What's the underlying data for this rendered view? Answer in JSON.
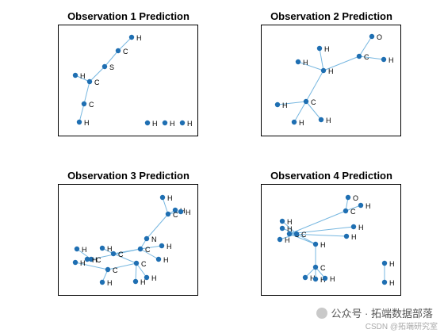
{
  "figure": {
    "panels": [
      {
        "title": "Observation 1 Prediction",
        "atoms": [
          {
            "label": "H"
          },
          {
            "label": "C"
          },
          {
            "label": "S"
          },
          {
            "label": "C"
          },
          {
            "label": "H"
          },
          {
            "label": "C"
          },
          {
            "label": "H"
          },
          {
            "label": "H"
          },
          {
            "label": "H"
          },
          {
            "label": "H"
          }
        ],
        "bonds": [
          [
            0,
            1
          ],
          [
            1,
            2
          ],
          [
            2,
            3
          ],
          [
            3,
            4
          ],
          [
            3,
            5
          ],
          [
            5,
            6
          ]
        ]
      },
      {
        "title": "Observation 2 Prediction",
        "atoms": [
          {
            "label": "O"
          },
          {
            "label": "C"
          },
          {
            "label": "H"
          },
          {
            "label": "H"
          },
          {
            "label": "H"
          },
          {
            "label": "H"
          },
          {
            "label": "C"
          },
          {
            "label": "H"
          },
          {
            "label": "H"
          },
          {
            "label": "H"
          }
        ],
        "bonds": [
          [
            0,
            1
          ],
          [
            1,
            2
          ],
          [
            1,
            3
          ],
          [
            3,
            4
          ],
          [
            3,
            5
          ],
          [
            3,
            6
          ],
          [
            6,
            7
          ],
          [
            6,
            8
          ],
          [
            6,
            9
          ]
        ]
      },
      {
        "title": "Observation 3 Prediction",
        "atoms": [
          {
            "label": "H"
          },
          {
            "label": "H"
          },
          {
            "label": "C"
          },
          {
            "label": "H"
          },
          {
            "label": "N"
          },
          {
            "label": "H"
          },
          {
            "label": "C"
          },
          {
            "label": "H"
          },
          {
            "label": "H"
          },
          {
            "label": "C"
          },
          {
            "label": "C"
          },
          {
            "label": "H"
          },
          {
            "label": "H"
          },
          {
            "label": "C"
          },
          {
            "label": "H"
          },
          {
            "label": "C"
          },
          {
            "label": "H"
          },
          {
            "label": "H"
          },
          {
            "label": "H"
          }
        ],
        "bonds": [
          [
            0,
            2
          ],
          [
            1,
            2
          ],
          [
            2,
            3
          ],
          [
            2,
            4
          ],
          [
            4,
            6
          ],
          [
            6,
            5
          ],
          [
            6,
            7
          ],
          [
            6,
            9
          ],
          [
            6,
            15
          ],
          [
            9,
            8
          ],
          [
            9,
            10
          ],
          [
            10,
            11
          ],
          [
            10,
            12
          ],
          [
            10,
            13
          ],
          [
            13,
            14
          ],
          [
            13,
            16
          ],
          [
            15,
            17
          ],
          [
            15,
            18
          ]
        ]
      },
      {
        "title": "Observation 4 Prediction",
        "atoms": [
          {
            "label": "O"
          },
          {
            "label": "H"
          },
          {
            "label": "C"
          },
          {
            "label": "H"
          },
          {
            "label": "H"
          },
          {
            "label": "C"
          },
          {
            "label": "H"
          },
          {
            "label": "C"
          },
          {
            "label": "H"
          },
          {
            "label": "H"
          },
          {
            "label": "H"
          },
          {
            "label": "C"
          },
          {
            "label": "H"
          },
          {
            "label": "H"
          },
          {
            "label": "H"
          },
          {
            "label": "H"
          },
          {
            "label": "H"
          }
        ],
        "bonds": [
          [
            0,
            2
          ],
          [
            1,
            2
          ],
          [
            2,
            5
          ],
          [
            5,
            8
          ],
          [
            5,
            9
          ],
          [
            5,
            10
          ],
          [
            3,
            7
          ],
          [
            4,
            7
          ],
          [
            6,
            7
          ],
          [
            7,
            10
          ],
          [
            10,
            11
          ],
          [
            11,
            12
          ],
          [
            11,
            13
          ],
          [
            11,
            14
          ],
          [
            15,
            16
          ]
        ]
      }
    ]
  },
  "watermark": {
    "text": "公众号 · 拓端数据部落",
    "credit": "CSDN @拓端研究室"
  },
  "colors": {
    "atom": "#1f6fb2",
    "bond": "#77b7e0"
  }
}
